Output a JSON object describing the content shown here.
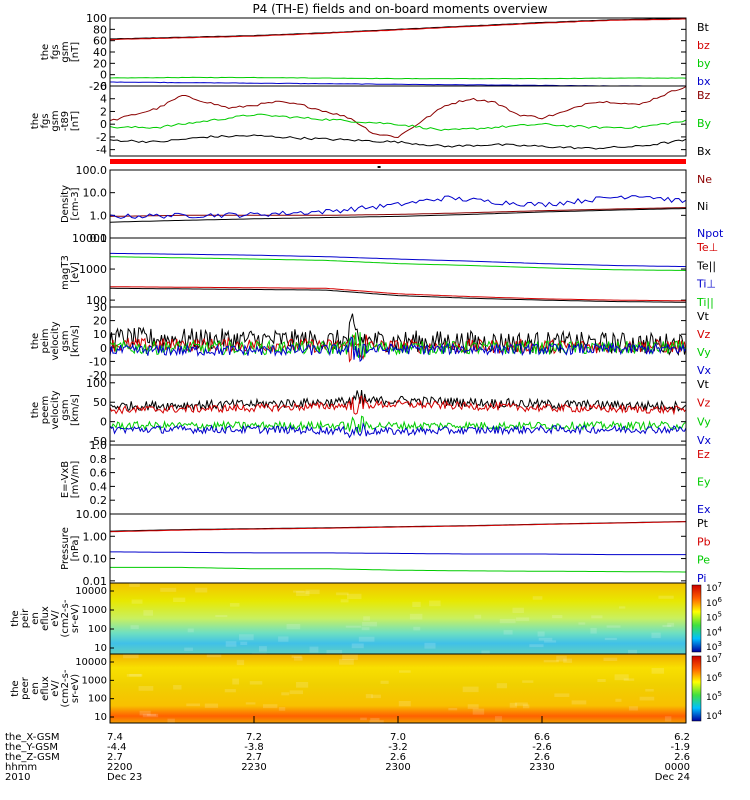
{
  "title": "P4 (TH-E) fields and on-board moments overview",
  "colors": {
    "black": "#000000",
    "red": "#d40000",
    "green": "#00cc00",
    "blue": "#0000cc",
    "darkred": "#8b0000"
  },
  "chart_data": [
    {
      "type": "line",
      "ylabel": [
        "the",
        "fgs",
        "gsm",
        "[nT]"
      ],
      "ylim": [
        -20,
        100
      ],
      "yticks": [
        {
          "v": 100,
          "t": "100"
        },
        {
          "v": 80,
          "t": "80"
        },
        {
          "v": 60,
          "t": "60"
        },
        {
          "v": 40,
          "t": "40"
        },
        {
          "v": 20,
          "t": "20"
        },
        {
          "v": 0,
          "t": "0"
        },
        {
          "v": -20,
          "t": "-20"
        }
      ],
      "series": [
        {
          "name": "Bt",
          "color": "#000000",
          "x": [
            2200,
            2215,
            2230,
            2245,
            2300,
            2315,
            2330,
            2345,
            2400
          ],
          "y": [
            63,
            66,
            69,
            74,
            80,
            86,
            92,
            97,
            99
          ]
        },
        {
          "name": "bz",
          "color": "#d40000",
          "x": [
            2200,
            2215,
            2230,
            2245,
            2300,
            2315,
            2330,
            2345,
            2400
          ],
          "y": [
            62,
            65,
            68,
            73,
            79,
            85,
            91,
            96,
            98
          ]
        },
        {
          "name": "by",
          "color": "#00cc00",
          "x": [
            2200,
            2215,
            2230,
            2245,
            2300,
            2315,
            2330,
            2345,
            2400
          ],
          "y": [
            -6,
            -5,
            -5,
            -6,
            -7,
            -7,
            -7,
            -6,
            -6
          ]
        },
        {
          "name": "bx",
          "color": "#0000cc",
          "x": [
            2200,
            2215,
            2230,
            2245,
            2300,
            2315,
            2330,
            2345,
            2400
          ],
          "y": [
            -13,
            -14,
            -15,
            -16,
            -17,
            -18,
            -19,
            -20,
            -20
          ]
        }
      ]
    },
    {
      "type": "line",
      "ylabel": [
        "the",
        "fgs",
        "gsm",
        "-t89",
        "[nT]"
      ],
      "ylim": [
        -5,
        6
      ],
      "yticks": [
        {
          "v": 6,
          "t": "6"
        },
        {
          "v": 4,
          "t": "4"
        },
        {
          "v": 2,
          "t": "2"
        },
        {
          "v": 0,
          "t": "0"
        },
        {
          "v": -2,
          "t": "-2"
        },
        {
          "v": -4,
          "t": "-4"
        }
      ],
      "series": [
        {
          "name": "Bz",
          "color": "#8b0000",
          "x": [
            2200,
            2205,
            2210,
            2215,
            2220,
            2225,
            2230,
            2235,
            2240,
            2245,
            2250,
            2255,
            2300,
            2305,
            2310,
            2315,
            2320,
            2325,
            2330,
            2335,
            2340,
            2345,
            2350,
            2355,
            2400
          ],
          "y": [
            0.5,
            1.5,
            2.5,
            4.5,
            3.5,
            2.5,
            3.0,
            3.5,
            3.0,
            2.0,
            1.0,
            -1.5,
            -2.0,
            0.5,
            3.0,
            4.0,
            3.5,
            1.5,
            1.0,
            2.0,
            3.5,
            3.5,
            3.0,
            4.5,
            6.0
          ]
        },
        {
          "name": "By",
          "color": "#00cc00",
          "x": [
            2200,
            2210,
            2220,
            2230,
            2240,
            2250,
            2300,
            2310,
            2320,
            2330,
            2340,
            2350,
            2400
          ],
          "y": [
            -0.5,
            -0.5,
            0.5,
            1.5,
            1.0,
            0.5,
            0.0,
            -1.0,
            -0.5,
            0.0,
            -0.5,
            -0.5,
            0.5
          ]
        },
        {
          "name": "Bx",
          "color": "#000000",
          "x": [
            2200,
            2210,
            2220,
            2230,
            2240,
            2250,
            2300,
            2310,
            2320,
            2330,
            2340,
            2350,
            2400
          ],
          "y": [
            -2.5,
            -2.8,
            -2.0,
            -1.8,
            -2.2,
            -2.5,
            -2.8,
            -3.5,
            -3.2,
            -3.5,
            -3.8,
            -3.5,
            -2.5
          ]
        }
      ]
    },
    {
      "type": "line",
      "log": true,
      "ylabel": [
        "Density",
        "[cm-3]"
      ],
      "ylim": [
        0.1,
        100
      ],
      "yticks": [
        {
          "v": 100,
          "t": "100.0"
        },
        {
          "v": 10,
          "t": "10.0"
        },
        {
          "v": 1,
          "t": "1.0"
        },
        {
          "v": 0.1,
          "t": "0.1"
        }
      ],
      "series": [
        {
          "name": "Ne",
          "color": "#8b0000",
          "x": [
            2200,
            2215,
            2230,
            2245,
            2300,
            2315,
            2330,
            2345,
            2400
          ],
          "y": [
            0.9,
            1.0,
            1.0,
            1.0,
            1.1,
            1.3,
            1.6,
            1.9,
            2.2
          ]
        },
        {
          "name": "Ni",
          "color": "#000000",
          "x": [
            2200,
            2215,
            2230,
            2245,
            2300,
            2315,
            2330,
            2345,
            2400
          ],
          "y": [
            0.5,
            0.6,
            0.7,
            0.8,
            0.9,
            1.1,
            1.4,
            1.7,
            2.0
          ]
        },
        {
          "name": "Npot",
          "color": "#0000cc",
          "x": [
            2200,
            2215,
            2230,
            2245,
            2300,
            2310,
            2320,
            2330,
            2340,
            2350,
            2400
          ],
          "y": [
            0.9,
            1.0,
            1.1,
            1.5,
            3.0,
            6.0,
            4.0,
            3.0,
            5.0,
            8.0,
            4.0
          ]
        }
      ]
    },
    {
      "type": "line",
      "log": true,
      "ylabel": [
        "magT3",
        "[eV]"
      ],
      "ylim": [
        60,
        10000
      ],
      "yticks": [
        {
          "v": 10000,
          "t": "10000"
        },
        {
          "v": 1000,
          "t": "1000"
        },
        {
          "v": 100,
          "t": "100"
        }
      ],
      "series": [
        {
          "name": "Te⊥",
          "color": "#d40000",
          "x": [
            2200,
            2215,
            2230,
            2245,
            2300,
            2315,
            2330,
            2345,
            2400
          ],
          "y": [
            270,
            260,
            250,
            240,
            160,
            130,
            110,
            100,
            95
          ]
        },
        {
          "name": "Te||",
          "color": "#000000",
          "x": [
            2200,
            2215,
            2230,
            2245,
            2300,
            2315,
            2330,
            2345,
            2400
          ],
          "y": [
            240,
            230,
            220,
            210,
            140,
            115,
            100,
            90,
            85
          ]
        },
        {
          "name": "Ti⊥",
          "color": "#0000cc",
          "x": [
            2200,
            2215,
            2230,
            2245,
            2300,
            2315,
            2330,
            2345,
            2400
          ],
          "y": [
            3200,
            3000,
            2800,
            2500,
            2100,
            1800,
            1500,
            1300,
            1200
          ]
        },
        {
          "name": "Ti||",
          "color": "#00cc00",
          "x": [
            2200,
            2215,
            2230,
            2245,
            2300,
            2315,
            2330,
            2345,
            2400
          ],
          "y": [
            2500,
            2300,
            2100,
            1900,
            1500,
            1300,
            1100,
            950,
            900
          ]
        }
      ]
    },
    {
      "type": "line",
      "ylabel": [
        "the",
        "peim",
        "velocity",
        "gsm",
        "[km/s]"
      ],
      "ylim": [
        -20,
        30
      ],
      "yticks": [
        {
          "v": 30,
          "t": "30"
        },
        {
          "v": 20,
          "t": "20"
        },
        {
          "v": 10,
          "t": "10"
        },
        {
          "v": 0,
          "t": "0"
        },
        {
          "v": -10,
          "t": "-10"
        },
        {
          "v": -20,
          "t": "-20"
        }
      ],
      "series": [
        {
          "name": "Vt",
          "color": "#000000",
          "x": [
            2200,
            2230,
            2300,
            2330,
            2400
          ],
          "y": [
            7,
            6,
            5,
            4,
            3
          ],
          "noise": 8
        },
        {
          "name": "Vz",
          "color": "#d40000",
          "x": [
            2200,
            2230,
            2300,
            2330,
            2400
          ],
          "y": [
            2,
            2,
            1,
            1,
            1
          ],
          "noise": 5
        },
        {
          "name": "Vy",
          "color": "#00cc00",
          "x": [
            2200,
            2230,
            2300,
            2330,
            2400
          ],
          "y": [
            0,
            0,
            0,
            0,
            0
          ],
          "noise": 5
        },
        {
          "name": "Vx",
          "color": "#0000cc",
          "x": [
            2200,
            2230,
            2300,
            2330,
            2400
          ],
          "y": [
            -2,
            -2,
            -1,
            -1,
            -1
          ],
          "noise": 4
        }
      ]
    },
    {
      "type": "line",
      "ylabel": [
        "the",
        "peem",
        "velocity",
        "gsm",
        "[km/s]"
      ],
      "ylim": [
        -60,
        120
      ],
      "yticks": [
        {
          "v": 100,
          "t": "100"
        },
        {
          "v": 50,
          "t": "50"
        },
        {
          "v": 0,
          "t": "0"
        },
        {
          "v": -50,
          "t": "-50"
        }
      ],
      "series": [
        {
          "name": "Vt",
          "color": "#000000",
          "x": [
            2200,
            2230,
            2300,
            2330,
            2400
          ],
          "y": [
            40,
            45,
            55,
            45,
            40
          ],
          "noise": 12
        },
        {
          "name": "Vz",
          "color": "#d40000",
          "x": [
            2200,
            2230,
            2300,
            2330,
            2400
          ],
          "y": [
            30,
            35,
            45,
            35,
            30
          ],
          "noise": 10
        },
        {
          "name": "Vy",
          "color": "#00cc00",
          "x": [
            2200,
            2230,
            2300,
            2330,
            2400
          ],
          "y": [
            -10,
            -10,
            -10,
            -10,
            -10
          ],
          "noise": 10
        },
        {
          "name": "Vx",
          "color": "#0000cc",
          "x": [
            2200,
            2230,
            2300,
            2330,
            2400
          ],
          "y": [
            -20,
            -20,
            -25,
            -20,
            -20
          ],
          "noise": 10
        }
      ]
    },
    {
      "type": "line",
      "ylabel": [
        "E=-VxB",
        "[mV/m]"
      ],
      "ylim": [
        0,
        1
      ],
      "yticks": [
        {
          "v": 1,
          "t": "1.0"
        },
        {
          "v": 0.8,
          "t": "0.8"
        },
        {
          "v": 0.6,
          "t": "0.6"
        },
        {
          "v": 0.4,
          "t": "0.4"
        },
        {
          "v": 0.2,
          "t": "0.2"
        }
      ],
      "series": [
        {
          "name": "Ez",
          "color": "#d40000",
          "x": [],
          "y": []
        },
        {
          "name": "Ey",
          "color": "#00cc00",
          "x": [],
          "y": []
        },
        {
          "name": "Ex",
          "color": "#0000cc",
          "x": [],
          "y": []
        }
      ]
    },
    {
      "type": "line",
      "log": true,
      "ylabel": [
        "Pressure",
        "[nPa]"
      ],
      "ylim": [
        0.008,
        10
      ],
      "yticks": [
        {
          "v": 10,
          "t": "10.00"
        },
        {
          "v": 1,
          "t": "1.00"
        },
        {
          "v": 0.1,
          "t": "0.10"
        },
        {
          "v": 0.01,
          "t": "0.01"
        }
      ],
      "series": [
        {
          "name": "Pt",
          "color": "#000000",
          "x": [
            2200,
            2215,
            2230,
            2245,
            2300,
            2315,
            2330,
            2345,
            2400
          ],
          "y": [
            1.7,
            2.0,
            2.2,
            2.4,
            2.7,
            3.0,
            3.5,
            4.0,
            4.6
          ]
        },
        {
          "name": "Pb",
          "color": "#d40000",
          "x": [
            2200,
            2215,
            2230,
            2245,
            2300,
            2315,
            2330,
            2345,
            2400
          ],
          "y": [
            1.6,
            1.9,
            2.1,
            2.3,
            2.6,
            2.9,
            3.4,
            3.9,
            4.5
          ]
        },
        {
          "name": "Pe",
          "color": "#00cc00",
          "x": [
            2200,
            2215,
            2230,
            2245,
            2300,
            2315,
            2330,
            2345,
            2400
          ],
          "y": [
            0.04,
            0.04,
            0.035,
            0.035,
            0.03,
            0.028,
            0.027,
            0.026,
            0.025
          ]
        },
        {
          "name": "Pi",
          "color": "#0000cc",
          "x": [
            2200,
            2215,
            2230,
            2245,
            2300,
            2315,
            2330,
            2345,
            2400
          ],
          "y": [
            0.2,
            0.19,
            0.18,
            0.18,
            0.17,
            0.16,
            0.16,
            0.15,
            0.15
          ]
        }
      ]
    },
    {
      "type": "heatmap",
      "ylabel": [
        "the",
        "peir",
        "en",
        "eflux",
        "eV/",
        "(cm2-s-",
        "sr-eV)"
      ],
      "yticks": [
        {
          "t": "10000"
        },
        {
          "t": "1000"
        },
        {
          "t": "100"
        },
        {
          "t": "10"
        }
      ],
      "colorbar": [
        "10^7",
        "10^6",
        "10^5",
        "10^4",
        "10^3"
      ]
    },
    {
      "type": "heatmap",
      "ylabel": [
        "the",
        "peer",
        "en",
        "eflux",
        "eV/",
        "(cm2-s-",
        "sr-eV)"
      ],
      "yticks": [
        {
          "t": "10000"
        },
        {
          "t": "1000"
        },
        {
          "t": "100"
        },
        {
          "t": "10"
        }
      ],
      "colorbar": [
        "10^7",
        "10^6",
        "10^5",
        "10^4"
      ]
    }
  ],
  "xaxis": {
    "row_labels": [
      "the_X-GSM",
      "the_Y-GSM",
      "the_Z-GSM",
      "hhmm",
      "2010"
    ],
    "x": [
      2200,
      2230,
      2300,
      2330,
      2400
    ],
    "columns": [
      [
        "7.4",
        "-4.4",
        "2.7",
        "2200",
        "Dec 23"
      ],
      [
        "7.2",
        "-3.8",
        "2.7",
        "2230",
        ""
      ],
      [
        "7.0",
        "-3.2",
        "2.6",
        "2300",
        ""
      ],
      [
        "6.6",
        "-2.6",
        "2.6",
        "2330",
        ""
      ],
      [
        "6.2",
        "-1.9",
        "2.6",
        "0000",
        "Dec 24"
      ]
    ]
  }
}
